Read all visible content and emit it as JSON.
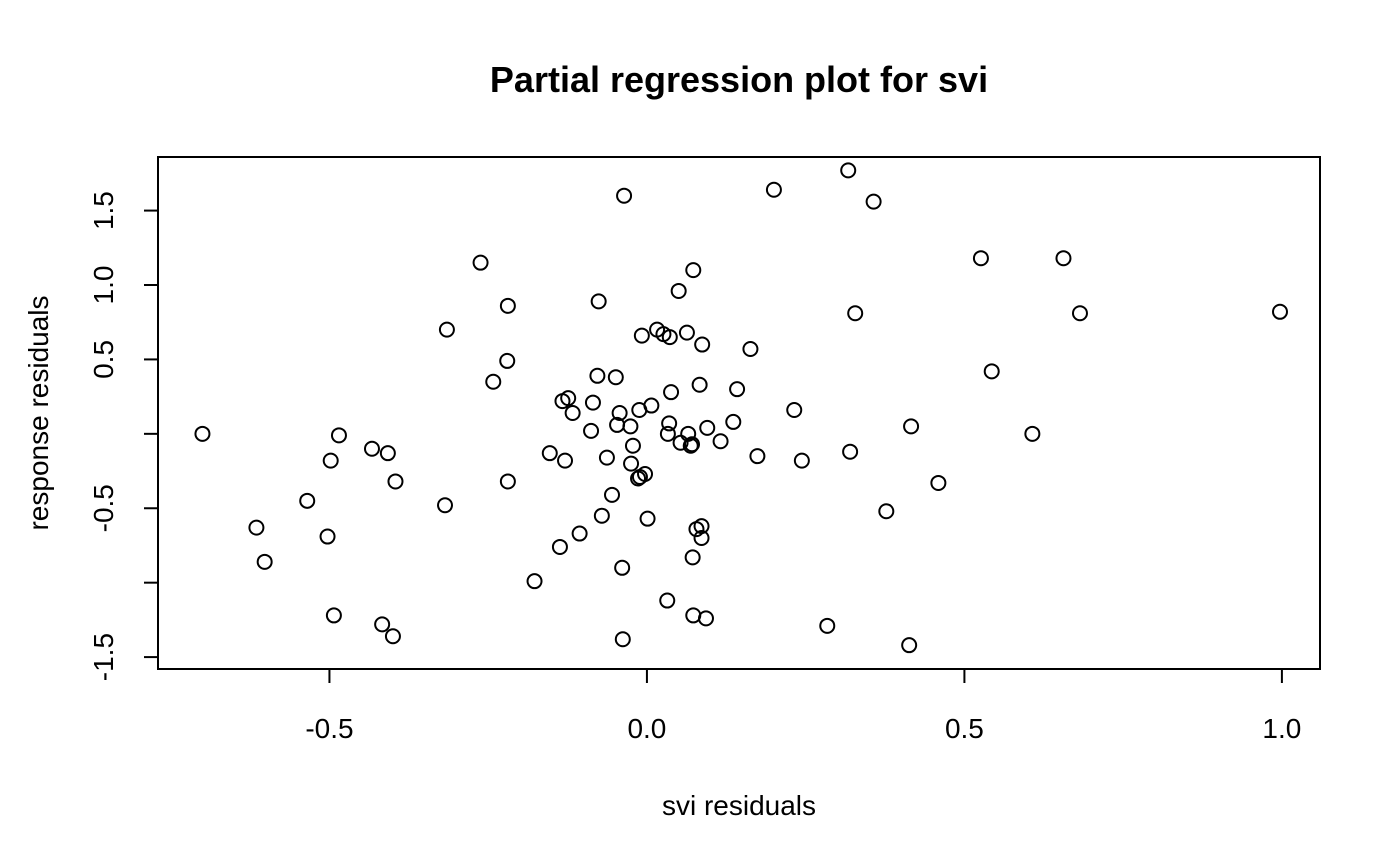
{
  "chart_data": {
    "type": "scatter",
    "title": "Partial regression plot for svi",
    "xlabel": "svi residuals",
    "ylabel": "response residuals",
    "xlim": [
      -0.77,
      1.06
    ],
    "ylim": [
      -1.58,
      1.86
    ],
    "x_ticks": [
      -0.5,
      0.0,
      0.5,
      1.0
    ],
    "x_tick_labels": [
      "-0.5",
      "0.0",
      "0.5",
      "1.0"
    ],
    "y_ticks": [
      -1.5,
      -1.0,
      -0.5,
      0.0,
      0.5,
      1.0,
      1.5
    ],
    "y_tick_labels": [
      "-1.5",
      "",
      "-0.5",
      "",
      "0.5",
      "1.0",
      "1.5"
    ],
    "grid": false,
    "marker": "open-circle",
    "points": [
      [
        -0.7,
        0.0
      ],
      [
        -0.615,
        -0.63
      ],
      [
        -0.602,
        -0.86
      ],
      [
        -0.535,
        -0.45
      ],
      [
        -0.503,
        -0.69
      ],
      [
        -0.498,
        -0.18
      ],
      [
        -0.493,
        -1.22
      ],
      [
        -0.485,
        -0.01
      ],
      [
        -0.433,
        -0.1
      ],
      [
        -0.417,
        -1.28
      ],
      [
        -0.408,
        -0.13
      ],
      [
        -0.4,
        -1.36
      ],
      [
        -0.396,
        -0.32
      ],
      [
        -0.318,
        -0.48
      ],
      [
        -0.315,
        0.7
      ],
      [
        -0.262,
        1.15
      ],
      [
        -0.242,
        0.35
      ],
      [
        -0.22,
        0.49
      ],
      [
        -0.219,
        -0.32
      ],
      [
        -0.219,
        0.86
      ],
      [
        -0.177,
        -0.99
      ],
      [
        -0.153,
        -0.13
      ],
      [
        -0.137,
        -0.76
      ],
      [
        -0.133,
        0.22
      ],
      [
        -0.129,
        -0.18
      ],
      [
        -0.124,
        0.24
      ],
      [
        -0.117,
        0.14
      ],
      [
        -0.106,
        -0.67
      ],
      [
        -0.088,
        0.02
      ],
      [
        -0.085,
        0.21
      ],
      [
        -0.078,
        0.39
      ],
      [
        -0.076,
        0.89
      ],
      [
        -0.071,
        -0.55
      ],
      [
        -0.063,
        -0.16
      ],
      [
        -0.055,
        -0.41
      ],
      [
        -0.049,
        0.38
      ],
      [
        -0.047,
        0.06
      ],
      [
        -0.043,
        0.14
      ],
      [
        -0.039,
        -0.9
      ],
      [
        -0.038,
        -1.38
      ],
      [
        -0.036,
        1.6
      ],
      [
        -0.026,
        0.05
      ],
      [
        -0.025,
        -0.2
      ],
      [
        -0.022,
        -0.08
      ],
      [
        -0.014,
        -0.3
      ],
      [
        -0.012,
        0.16
      ],
      [
        -0.011,
        -0.29
      ],
      [
        -0.008,
        0.66
      ],
      [
        -0.003,
        -0.27
      ],
      [
        0.001,
        -0.57
      ],
      [
        0.007,
        0.19
      ],
      [
        0.016,
        0.7
      ],
      [
        0.026,
        0.67
      ],
      [
        0.032,
        -1.12
      ],
      [
        0.033,
        0.0
      ],
      [
        0.035,
        0.07
      ],
      [
        0.036,
        0.65
      ],
      [
        0.038,
        0.28
      ],
      [
        0.05,
        0.96
      ],
      [
        0.053,
        -0.06
      ],
      [
        0.063,
        0.68
      ],
      [
        0.065,
        0.0
      ],
      [
        0.069,
        -0.08
      ],
      [
        0.071,
        -0.07
      ],
      [
        0.072,
        -0.83
      ],
      [
        0.073,
        -1.22
      ],
      [
        0.073,
        1.1
      ],
      [
        0.078,
        -0.64
      ],
      [
        0.083,
        0.33
      ],
      [
        0.086,
        -0.7
      ],
      [
        0.086,
        -0.62
      ],
      [
        0.087,
        0.6
      ],
      [
        0.093,
        -1.24
      ],
      [
        0.095,
        0.04
      ],
      [
        0.116,
        -0.05
      ],
      [
        0.136,
        0.08
      ],
      [
        0.142,
        0.3
      ],
      [
        0.163,
        0.57
      ],
      [
        0.174,
        -0.15
      ],
      [
        0.2,
        1.64
      ],
      [
        0.232,
        0.16
      ],
      [
        0.244,
        -0.18
      ],
      [
        0.284,
        -1.29
      ],
      [
        0.317,
        1.77
      ],
      [
        0.32,
        -0.12
      ],
      [
        0.328,
        0.81
      ],
      [
        0.357,
        1.56
      ],
      [
        0.377,
        -0.52
      ],
      [
        0.413,
        -1.42
      ],
      [
        0.416,
        0.05
      ],
      [
        0.459,
        -0.33
      ],
      [
        0.526,
        1.18
      ],
      [
        0.543,
        0.42
      ],
      [
        0.607,
        0.0
      ],
      [
        0.656,
        1.18
      ],
      [
        0.682,
        0.81
      ],
      [
        0.997,
        0.82
      ]
    ]
  }
}
